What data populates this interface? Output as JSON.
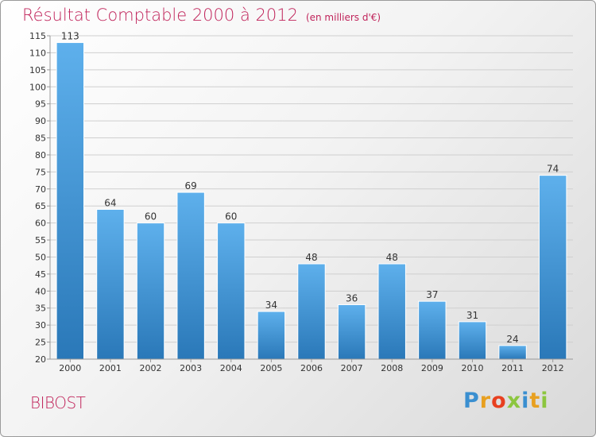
{
  "chart_data": {
    "type": "bar",
    "title": "Résultat Comptable 2000 à 2012",
    "unit_note": "(en milliers d'€)",
    "categories": [
      "2000",
      "2001",
      "2002",
      "2003",
      "2004",
      "2005",
      "2006",
      "2007",
      "2008",
      "2009",
      "2010",
      "2011",
      "2012"
    ],
    "values": [
      113,
      64,
      60,
      69,
      60,
      34,
      48,
      36,
      48,
      37,
      31,
      24,
      74
    ],
    "ylim": [
      20,
      115
    ],
    "yticks": [
      20,
      25,
      30,
      35,
      40,
      45,
      50,
      55,
      60,
      65,
      70,
      75,
      80,
      85,
      90,
      95,
      100,
      105,
      110,
      115
    ],
    "xlabel": "",
    "ylabel": "",
    "bar_color": "#4a9fe0",
    "bar_color_dark": "#2a78b8"
  },
  "commune": "BIBOST",
  "logo": {
    "letters": [
      "P",
      "r",
      "o",
      "x",
      "i",
      "t",
      "i"
    ],
    "colors": [
      "#3a8fd0",
      "#e8a020",
      "#e84020",
      "#8cc63f",
      "#3a8fd0",
      "#e8a020",
      "#8cc63f"
    ]
  }
}
